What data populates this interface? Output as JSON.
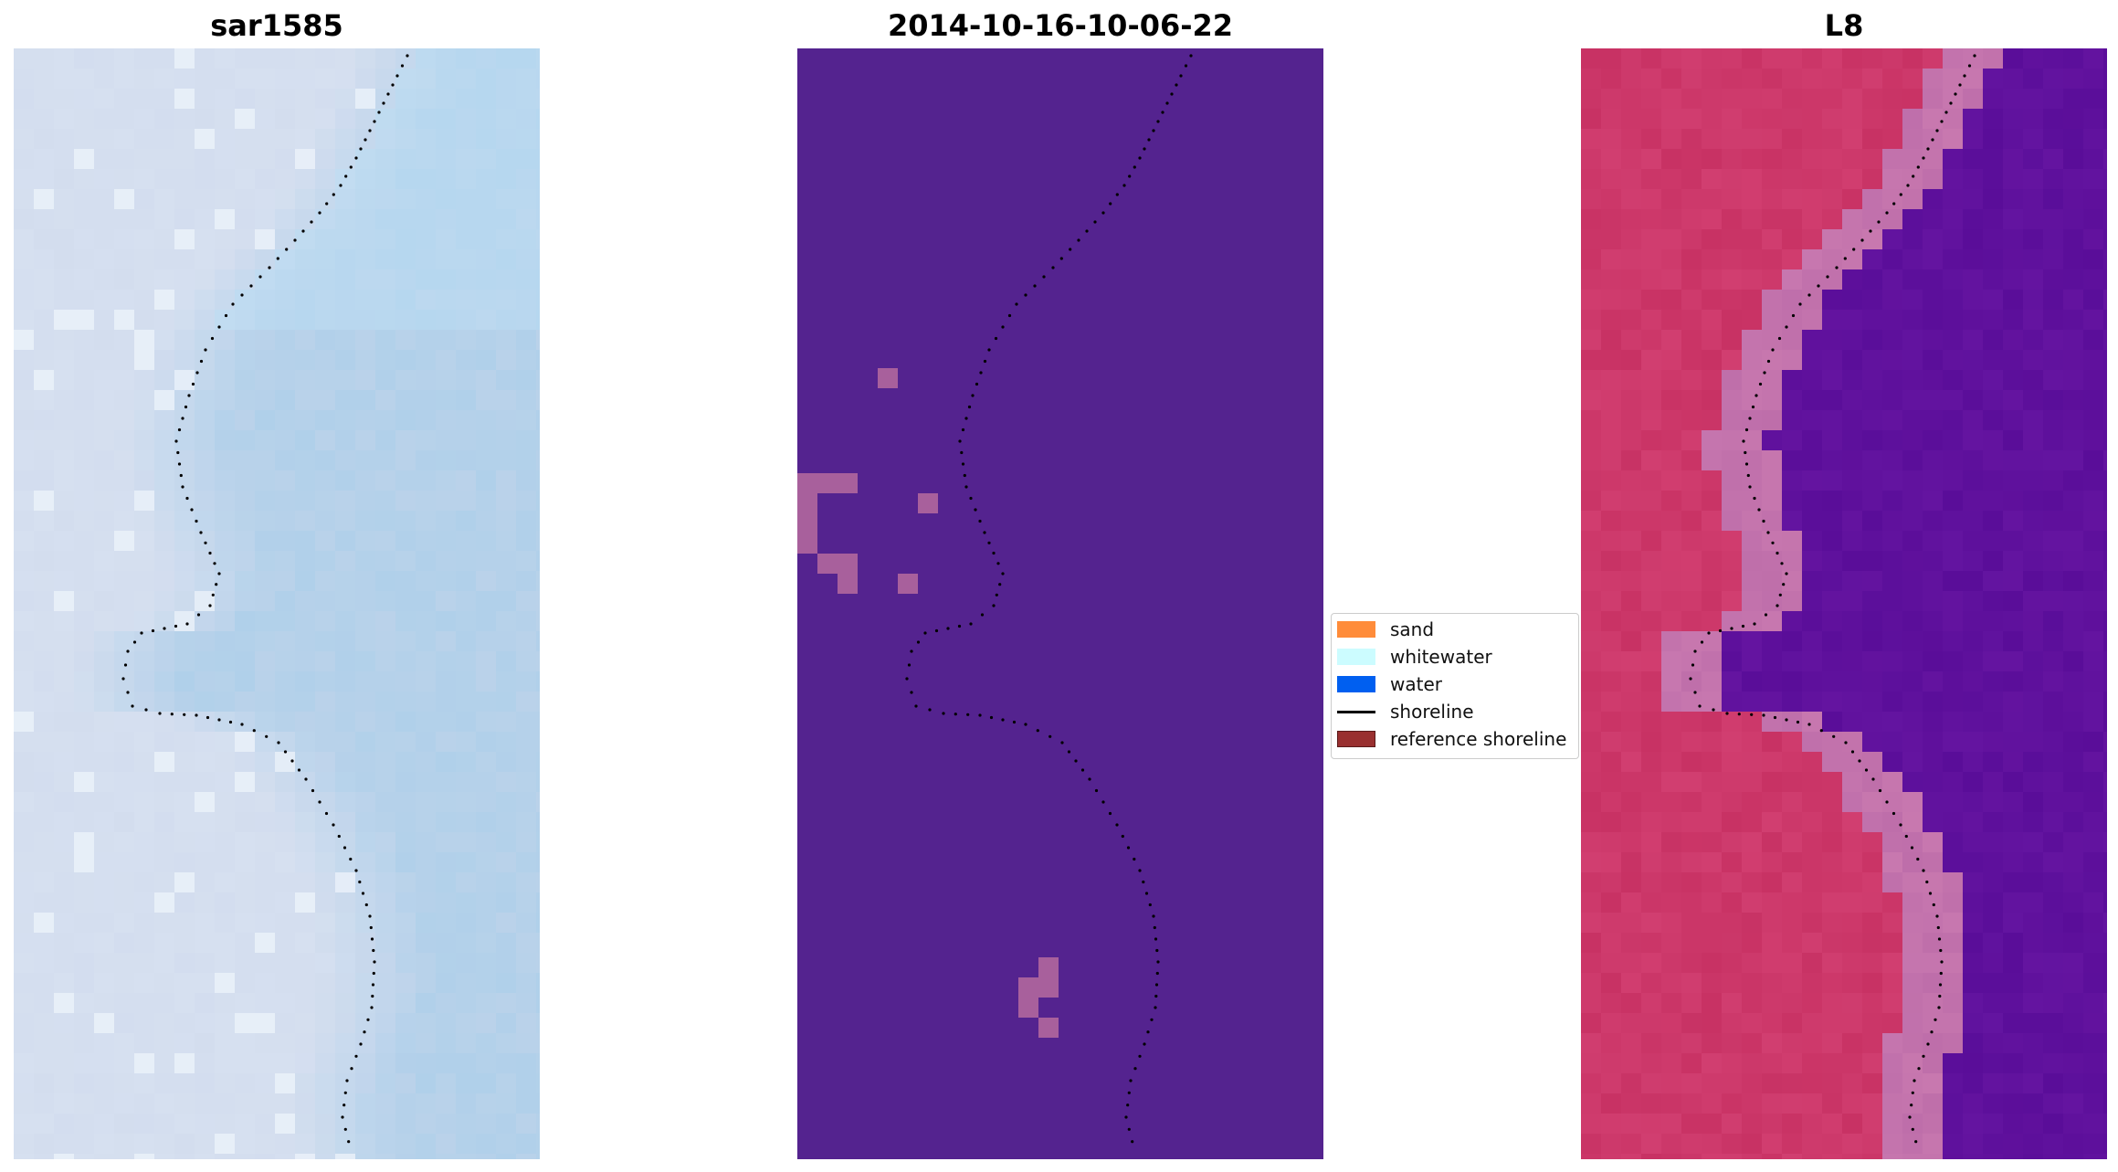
{
  "panels": [
    {
      "title": "sar1585",
      "image": "satellite RGB image"
    },
    {
      "title": "2014-10-16-10-06-22",
      "image": "classified image"
    },
    {
      "title": "L8",
      "image": "MNDWI image"
    }
  ],
  "legend": {
    "items": [
      {
        "label": "sand",
        "color": "#ff8c3a",
        "kind": "patch"
      },
      {
        "label": "whitewater",
        "color": "#ccfcff",
        "kind": "patch"
      },
      {
        "label": "water",
        "color": "#005ff0",
        "kind": "patch"
      },
      {
        "label": "shoreline",
        "color": "#000000",
        "kind": "line"
      },
      {
        "label": "reference shoreline",
        "color": "#993030",
        "kind": "patch"
      }
    ]
  },
  "colors": {
    "rgb_water": "#b4d4ee",
    "rgb_land": "#dfe6f4",
    "classified_background": "#54238f",
    "classified_patch": "#a8609c",
    "index_land": "#c83a6a",
    "index_water": "#6a18a0"
  }
}
